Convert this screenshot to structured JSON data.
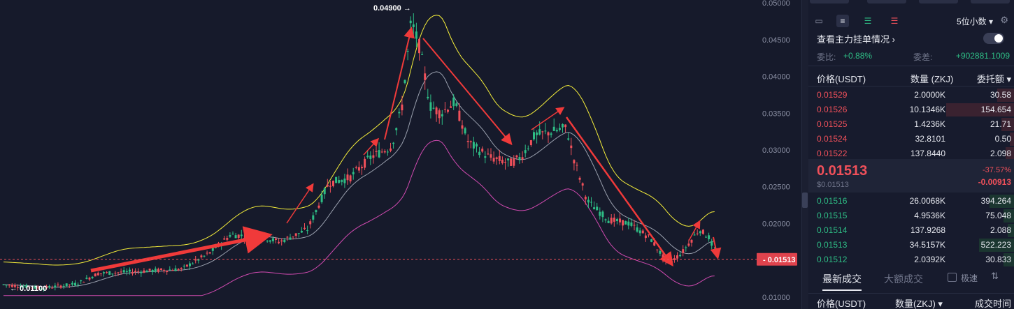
{
  "chart": {
    "y_axis_ticks": [
      "0.05000",
      "0.04500",
      "0.04000",
      "0.03500",
      "0.03000",
      "0.02500",
      "0.02000",
      "0.01513",
      "0.01000"
    ],
    "current_price_tag": "0.01513",
    "high_annotation": "0.04900",
    "low_annotation": "0.01100",
    "colors": {
      "up": "#2ebd85",
      "down": "#f0505a",
      "upper_band": "#f5ee3a",
      "mid_band": "#9aa0ae",
      "lower_band": "#d04ab0",
      "arrows": "#f03a3a"
    }
  },
  "panel": {
    "icons": [
      "order-book-both-icon",
      "order-book-bids-icon",
      "order-book-asks-icon",
      "list-icon"
    ],
    "decimals_select": "5位小数",
    "whale_orders_title": "查看主力挂单情况",
    "ratio_label": "委比:",
    "ratio_value": "+0.88%",
    "diff_label": "委差:",
    "diff_value": "+902881.1009",
    "col_price": "价格(USDT)",
    "col_qty": "数量 (ZKJ)",
    "col_total": "委托额",
    "asks": [
      {
        "price": "0.01529",
        "qty": "2.0000K",
        "total": "30.58",
        "depth": 0.08
      },
      {
        "price": "0.01526",
        "qty": "10.1346K",
        "total": "154.654",
        "depth": 0.33
      },
      {
        "price": "0.01525",
        "qty": "1.4236K",
        "total": "21.71",
        "depth": 0.06
      },
      {
        "price": "0.01524",
        "qty": "32.8101",
        "total": "0.50",
        "depth": 0.02
      },
      {
        "price": "0.01522",
        "qty": "137.8440",
        "total": "2.098",
        "depth": 0.04
      }
    ],
    "last_price": "0.01513",
    "last_price_usd": "$0.01513",
    "change_pct": "-37.57%",
    "change_abs": "-0.00913",
    "bids": [
      {
        "price": "0.01516",
        "qty": "26.0068K",
        "total": "394.264",
        "depth": 0.12
      },
      {
        "price": "0.01515",
        "qty": "4.9536K",
        "total": "75.048",
        "depth": 0.05
      },
      {
        "price": "0.01514",
        "qty": "137.9268",
        "total": "2.088",
        "depth": 0.03
      },
      {
        "price": "0.01513",
        "qty": "34.5157K",
        "total": "522.223",
        "depth": 0.17
      },
      {
        "price": "0.01512",
        "qty": "2.0392K",
        "total": "30.833",
        "depth": 0.05
      }
    ],
    "tab_latest": "最新成交",
    "tab_large": "大额成交",
    "fast_label": "极速",
    "trades_col_price": "价格(USDT)",
    "trades_col_qty": "数量(ZKJ)",
    "trades_col_time": "成交时间"
  }
}
